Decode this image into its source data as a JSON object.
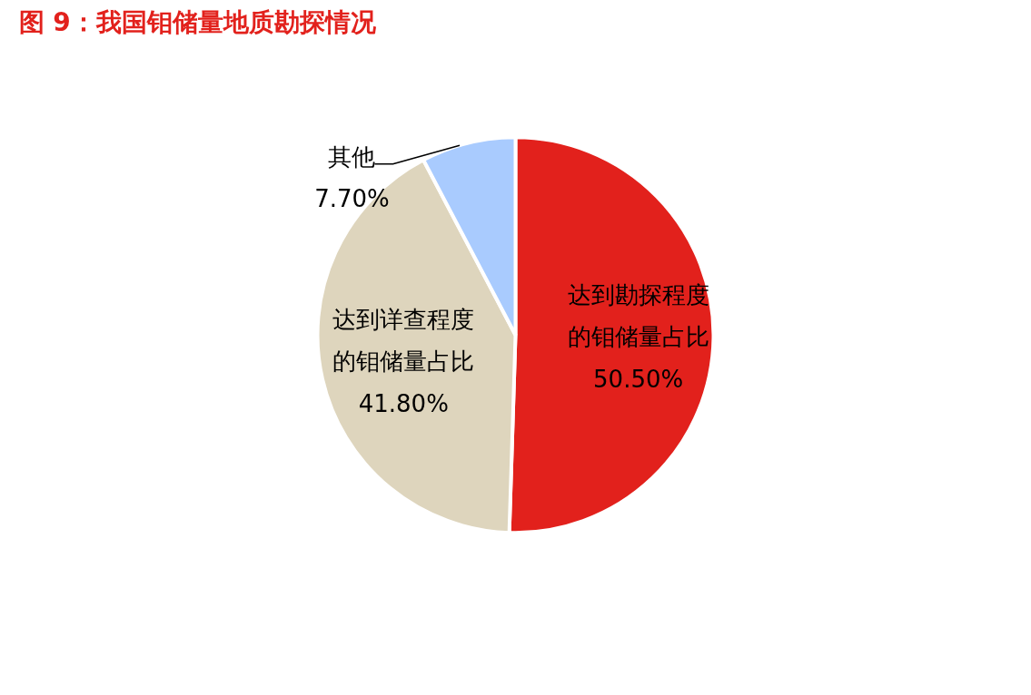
{
  "chart_data": {
    "type": "pie",
    "title": "图 9：我国钼储量地质勘探情况",
    "categories": [
      "达到勘探程度的钼储量占比",
      "达到详查程度的钼储量占比",
      "其他"
    ],
    "values": [
      50.5,
      41.8,
      7.7
    ],
    "value_labels": [
      "50.50%",
      "41.80%",
      "7.70%"
    ],
    "colors": [
      "#e2211c",
      "#ded5bd",
      "#a9cbfe"
    ]
  }
}
